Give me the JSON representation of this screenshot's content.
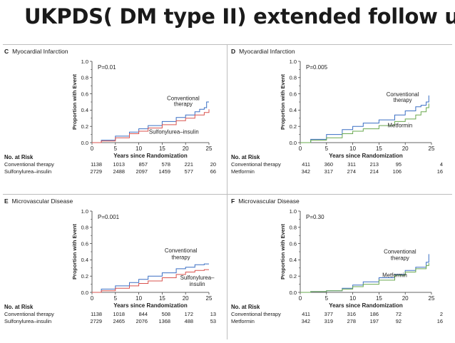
{
  "slide": {
    "title": "UKPDS( DM type II) extended follow up"
  },
  "colors": {
    "blue": "#3a6fc4",
    "red": "#d9534f",
    "green": "#6aa84f",
    "axis": "#333333"
  },
  "chart_data": [
    {
      "id": "C",
      "letter": "C",
      "title": "Myocardial Infarction",
      "type": "line",
      "p_value": "P=0.01",
      "xlabel": "Years since Randomization",
      "ylabel": "Proportion with Event",
      "xlim": [
        0,
        25
      ],
      "ylim": [
        0,
        1.0
      ],
      "xticks": [
        "0",
        "5",
        "10",
        "15",
        "20",
        "25"
      ],
      "yticks": [
        "0.0",
        "0.2",
        "0.4",
        "0.6",
        "0.8",
        "1.0"
      ],
      "annotations": [
        {
          "text": "Conventional",
          "x": 19.5,
          "y": 0.52
        },
        {
          "text": "therapy",
          "x": 19.5,
          "y": 0.45
        },
        {
          "text": "Sulfonylurea–insulin",
          "x": 17.5,
          "y": 0.11
        }
      ],
      "series": [
        {
          "name": "Conventional therapy",
          "color": "blue",
          "x": [
            0,
            2,
            5,
            8,
            10,
            12,
            15,
            18,
            20,
            22,
            23,
            24,
            24.5,
            25
          ],
          "y": [
            0,
            0.03,
            0.08,
            0.13,
            0.17,
            0.21,
            0.26,
            0.31,
            0.34,
            0.38,
            0.41,
            0.43,
            0.5,
            0.5
          ]
        },
        {
          "name": "Sulfonylurea–insulin",
          "color": "red",
          "x": [
            0,
            2,
            5,
            8,
            10,
            12,
            15,
            18,
            20,
            22,
            24,
            25
          ],
          "y": [
            0,
            0.02,
            0.06,
            0.11,
            0.14,
            0.18,
            0.22,
            0.27,
            0.3,
            0.34,
            0.37,
            0.41
          ]
        }
      ],
      "risk_table": {
        "header": "No. at Risk",
        "rows": [
          {
            "label": "Conventional therapy",
            "values": [
              "1138",
              "1013",
              "857",
              "578",
              "221",
              "20"
            ]
          },
          {
            "label": "Sulfonylurea–insulin",
            "values": [
              "2729",
              "2488",
              "2097",
              "1459",
              "577",
              "66"
            ]
          }
        ]
      }
    },
    {
      "id": "D",
      "letter": "D",
      "title": "Myocardial Infarction",
      "type": "line",
      "p_value": "P=0.005",
      "xlabel": "Years since Randomization",
      "ylabel": "Proportion with Event",
      "xlim": [
        0,
        25
      ],
      "ylim": [
        0,
        1.0
      ],
      "xticks": [
        "0",
        "5",
        "10",
        "15",
        "20",
        "25"
      ],
      "yticks": [
        "0.0",
        "0.2",
        "0.4",
        "0.6",
        "0.8",
        "1.0"
      ],
      "annotations": [
        {
          "text": "Conventional",
          "x": 19.5,
          "y": 0.57
        },
        {
          "text": "therapy",
          "x": 19.5,
          "y": 0.5
        },
        {
          "text": "Metformin",
          "x": 19,
          "y": 0.19
        }
      ],
      "series": [
        {
          "name": "Conventional therapy",
          "color": "blue",
          "x": [
            0,
            2,
            5,
            8,
            10,
            12,
            15,
            18,
            20,
            22,
            23,
            24,
            24.5
          ],
          "y": [
            0,
            0.04,
            0.1,
            0.16,
            0.2,
            0.24,
            0.28,
            0.34,
            0.39,
            0.44,
            0.46,
            0.5,
            0.58
          ]
        },
        {
          "name": "Metformin",
          "color": "green",
          "x": [
            0,
            2,
            5,
            8,
            10,
            12,
            15,
            18,
            20,
            22,
            23,
            24,
            24.5
          ],
          "y": [
            0,
            0.03,
            0.06,
            0.11,
            0.14,
            0.17,
            0.21,
            0.26,
            0.29,
            0.34,
            0.38,
            0.43,
            0.48
          ]
        }
      ],
      "risk_table": {
        "header": "No. at Risk",
        "rows": [
          {
            "label": "Conventional therapy",
            "values": [
              "411",
              "360",
              "311",
              "213",
              "95",
              "4"
            ]
          },
          {
            "label": "Metformin",
            "values": [
              "342",
              "317",
              "274",
              "214",
              "106",
              "16"
            ]
          }
        ]
      }
    },
    {
      "id": "E",
      "letter": "E",
      "title": "Microvascular Disease",
      "type": "line",
      "p_value": "P=0.001",
      "xlabel": "Years since Randomization",
      "ylabel": "Proportion with Event",
      "xlim": [
        0,
        25
      ],
      "ylim": [
        0,
        1.0
      ],
      "xticks": [
        "0",
        "5",
        "10",
        "15",
        "20",
        "25"
      ],
      "yticks": [
        "0.0",
        "0.2",
        "0.4",
        "0.6",
        "0.8",
        "1.0"
      ],
      "annotations": [
        {
          "text": "Conventional",
          "x": 19,
          "y": 0.49
        },
        {
          "text": "therapy",
          "x": 19,
          "y": 0.41
        },
        {
          "text": "Sulfonylurea–",
          "x": 22.5,
          "y": 0.16
        },
        {
          "text": "insulin",
          "x": 22.5,
          "y": 0.08
        }
      ],
      "series": [
        {
          "name": "Conventional therapy",
          "color": "blue",
          "x": [
            0,
            2,
            5,
            8,
            10,
            12,
            15,
            18,
            20,
            22,
            24,
            25
          ],
          "y": [
            0,
            0.04,
            0.08,
            0.12,
            0.16,
            0.2,
            0.24,
            0.29,
            0.31,
            0.34,
            0.35,
            0.35
          ]
        },
        {
          "name": "Sulfonylurea–insulin",
          "color": "red",
          "x": [
            0,
            2,
            5,
            8,
            10,
            12,
            15,
            18,
            20,
            22,
            24,
            25
          ],
          "y": [
            0,
            0.02,
            0.05,
            0.08,
            0.11,
            0.14,
            0.18,
            0.22,
            0.25,
            0.27,
            0.28,
            0.28
          ]
        }
      ],
      "risk_table": {
        "header": "No. at Risk",
        "rows": [
          {
            "label": "Conventional therapy",
            "values": [
              "1138",
              "1018",
              "844",
              "508",
              "172",
              "13"
            ]
          },
          {
            "label": "Sulfonylurea–insulin",
            "values": [
              "2729",
              "2465",
              "2076",
              "1368",
              "488",
              "53"
            ]
          }
        ]
      }
    },
    {
      "id": "F",
      "letter": "F",
      "title": "Microvascular Disease",
      "type": "line",
      "p_value": "P=0.30",
      "xlabel": "Years since Randomization",
      "ylabel": "Proportion with Event",
      "xlim": [
        0,
        25
      ],
      "ylim": [
        0,
        1.0
      ],
      "xticks": [
        "0",
        "5",
        "10",
        "15",
        "20",
        "25"
      ],
      "yticks": [
        "0.0",
        "0.2",
        "0.4",
        "0.6",
        "0.8",
        "1.0"
      ],
      "annotations": [
        {
          "text": "Conventional",
          "x": 19,
          "y": 0.48
        },
        {
          "text": "therapy",
          "x": 19,
          "y": 0.4
        },
        {
          "text": "Metformin",
          "x": 18,
          "y": 0.19
        }
      ],
      "series": [
        {
          "name": "Conventional therapy",
          "color": "blue",
          "x": [
            0,
            2,
            5,
            8,
            10,
            12,
            15,
            18,
            20,
            22,
            24,
            24.5
          ],
          "y": [
            0,
            0.01,
            0.02,
            0.05,
            0.09,
            0.13,
            0.18,
            0.22,
            0.27,
            0.31,
            0.37,
            0.47
          ]
        },
        {
          "name": "Metformin",
          "color": "green",
          "x": [
            0,
            2,
            5,
            8,
            10,
            12,
            15,
            18,
            20,
            22,
            24,
            24.5
          ],
          "y": [
            0,
            0.01,
            0.02,
            0.04,
            0.07,
            0.1,
            0.15,
            0.21,
            0.25,
            0.29,
            0.33,
            0.36
          ]
        }
      ],
      "risk_table": {
        "header": "No. at Risk",
        "rows": [
          {
            "label": "Conventional therapy",
            "values": [
              "411",
              "377",
              "316",
              "186",
              "72",
              "2"
            ]
          },
          {
            "label": "Metformin",
            "values": [
              "342",
              "319",
              "278",
              "197",
              "92",
              "16"
            ]
          }
        ]
      }
    }
  ]
}
